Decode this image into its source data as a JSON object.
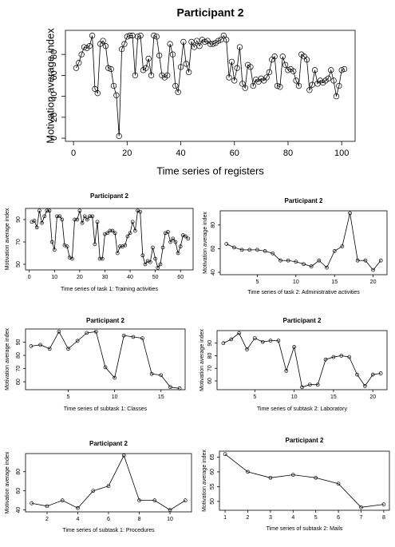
{
  "chart_data": [
    {
      "type": "line",
      "title": "Participant 2",
      "xlabel": "Time series of registers",
      "ylabel": "Motivation average index",
      "x": [
        1,
        2,
        3,
        4,
        5,
        6,
        7,
        8,
        9,
        10,
        11,
        12,
        13,
        14,
        15,
        16,
        17,
        18,
        19,
        20,
        21,
        22,
        23,
        24,
        25,
        26,
        27,
        28,
        29,
        30,
        31,
        32,
        33,
        34,
        35,
        36,
        37,
        38,
        39,
        40,
        41,
        42,
        43,
        44,
        45,
        46,
        47,
        48,
        49,
        50,
        51,
        52,
        53,
        54,
        55,
        56,
        57,
        58,
        59,
        60,
        61,
        62,
        63,
        64,
        65,
        66,
        67,
        68,
        69,
        70,
        71,
        72,
        73,
        74,
        75,
        76,
        77,
        78,
        79,
        80,
        81,
        82,
        83,
        84,
        85,
        86,
        87,
        88,
        89,
        90,
        91,
        92,
        93,
        94,
        95,
        96,
        97,
        98,
        99,
        100,
        101
      ],
      "values": [
        67,
        72,
        80,
        87,
        86,
        88,
        98,
        47,
        43,
        90,
        93,
        88,
        67,
        66,
        50,
        41,
        2,
        85,
        90,
        97,
        98,
        98,
        60,
        97,
        98,
        65,
        67,
        76,
        60,
        98,
        97,
        79,
        60,
        58,
        60,
        90,
        80,
        50,
        44,
        68,
        92,
        71,
        63,
        92,
        87,
        93,
        88,
        94,
        92,
        93,
        90,
        90,
        91,
        93,
        94,
        98,
        94,
        58,
        73,
        55,
        67,
        87,
        52,
        48,
        70,
        68,
        50,
        56,
        54,
        57,
        55,
        58,
        63,
        75,
        78,
        50,
        49,
        78,
        70,
        65,
        66,
        64,
        55,
        50,
        80,
        78,
        75,
        46,
        51,
        65,
        52,
        55,
        53,
        55,
        57,
        65,
        55,
        40,
        50,
        65,
        66
      ],
      "xlim": [
        -3,
        105
      ],
      "ylim": [
        -3,
        103
      ],
      "xticks": [
        0,
        20,
        40,
        60,
        80,
        100
      ],
      "yticks": [
        0,
        20,
        40,
        60,
        80
      ]
    },
    {
      "type": "line",
      "title": "Participant 2",
      "xlabel": "Time series of task 1: Training activities",
      "ylabel": "Motivation average index",
      "x": [
        1,
        2,
        3,
        4,
        5,
        6,
        7,
        8,
        9,
        10,
        11,
        12,
        13,
        14,
        15,
        16,
        17,
        18,
        19,
        20,
        21,
        22,
        23,
        24,
        25,
        26,
        27,
        28,
        29,
        30,
        31,
        32,
        33,
        34,
        35,
        36,
        37,
        38,
        39,
        40,
        41,
        42,
        43,
        44,
        45,
        46,
        47,
        48,
        49,
        50,
        51,
        52,
        53,
        54,
        55,
        56,
        57,
        58,
        59,
        60,
        61,
        62,
        63
      ],
      "values": [
        88,
        89,
        83,
        98,
        87,
        93,
        98,
        98,
        70,
        63,
        93,
        93,
        90,
        67,
        66,
        56,
        55,
        90,
        90,
        98,
        87,
        93,
        90,
        93,
        93,
        68,
        88,
        55,
        55,
        77,
        78,
        80,
        80,
        78,
        60,
        66,
        66,
        67,
        75,
        78,
        88,
        80,
        98,
        97,
        58,
        50,
        53,
        52,
        65,
        55,
        47,
        50,
        65,
        78,
        79,
        70,
        73,
        70,
        60,
        66,
        76,
        75,
        73
      ],
      "xlim": [
        -1.5,
        65
      ],
      "ylim": [
        45,
        100
      ],
      "xticks": [
        0,
        10,
        20,
        30,
        40,
        50,
        60
      ],
      "yticks": [
        50,
        70,
        90
      ]
    },
    {
      "type": "line",
      "title": "Participant 2",
      "xlabel": "Time series of task 2: Administrative activities",
      "ylabel": "Motivation average index",
      "x": [
        1,
        2,
        3,
        4,
        5,
        6,
        7,
        8,
        9,
        10,
        11,
        12,
        13,
        14,
        15,
        16,
        17,
        18,
        19,
        20,
        21
      ],
      "values": [
        64,
        61,
        59,
        59,
        59,
        58,
        56,
        50,
        50,
        49,
        47,
        45,
        50,
        44,
        58,
        62,
        90,
        50,
        50,
        42,
        50
      ],
      "xlim": [
        0.2,
        21.8
      ],
      "ylim": [
        38,
        92
      ],
      "xticks": [
        5,
        10,
        15,
        20
      ],
      "yticks": [
        40,
        60,
        80
      ]
    },
    {
      "type": "line",
      "title": "Participant 2",
      "xlabel": "Time series of subtask 1: Classes",
      "ylabel": "Motivation average index",
      "x": [
        1,
        2,
        3,
        4,
        5,
        6,
        7,
        8,
        9,
        10,
        11,
        12,
        13,
        14,
        15,
        16,
        17
      ],
      "values": [
        87,
        88,
        85,
        98,
        85,
        91,
        97,
        98,
        71,
        63,
        95,
        94,
        93,
        66,
        65,
        56,
        55
      ],
      "xlim": [
        0.4,
        17.6
      ],
      "ylim": [
        54,
        100
      ],
      "xticks": [
        5,
        10,
        15
      ],
      "yticks": [
        60,
        70,
        80,
        90
      ]
    },
    {
      "type": "line",
      "title": "Participant 2",
      "xlabel": "Time series of subtask 2: Laboratory",
      "ylabel": "Motivation average index",
      "x": [
        1,
        2,
        3,
        4,
        5,
        6,
        7,
        8,
        9,
        10,
        11,
        12,
        13,
        14,
        15,
        16,
        17,
        18,
        19,
        20,
        21
      ],
      "values": [
        90,
        93,
        98,
        85,
        94,
        91,
        92,
        92,
        68,
        87,
        55,
        57,
        57,
        77,
        79,
        80,
        79,
        65,
        56,
        65,
        66
      ],
      "xlim": [
        0.2,
        21.8
      ],
      "ylim": [
        53,
        100
      ],
      "xticks": [
        5,
        10,
        15,
        20
      ],
      "yticks": [
        60,
        70,
        80,
        90
      ]
    },
    {
      "type": "line",
      "title": "Participant 2",
      "xlabel": "Time series of subtask 1: Procedures",
      "ylabel": "Motivation average index",
      "x": [
        1,
        2,
        3,
        4,
        5,
        6,
        7,
        8,
        9,
        10,
        11
      ],
      "values": [
        47,
        44,
        50,
        42,
        60,
        65,
        97,
        50,
        50,
        40,
        50
      ],
      "xlim": [
        0.6,
        11.4
      ],
      "ylim": [
        38,
        99
      ],
      "xticks": [
        2,
        4,
        6,
        8,
        10
      ],
      "yticks": [
        40,
        60,
        80
      ]
    },
    {
      "type": "line",
      "title": "Participant 2",
      "xlabel": "Time series of subtask 2: Mails",
      "ylabel": "Motivation average index",
      "x": [
        1,
        2,
        3,
        4,
        5,
        6,
        7,
        8
      ],
      "values": [
        66,
        60,
        58,
        59,
        58,
        56,
        48,
        49
      ],
      "xlim": [
        0.75,
        8.25
      ],
      "ylim": [
        47,
        67
      ],
      "xticks": [
        1,
        2,
        3,
        4,
        5,
        6,
        7,
        8
      ],
      "yticks": [
        50,
        55,
        60,
        65
      ]
    }
  ]
}
